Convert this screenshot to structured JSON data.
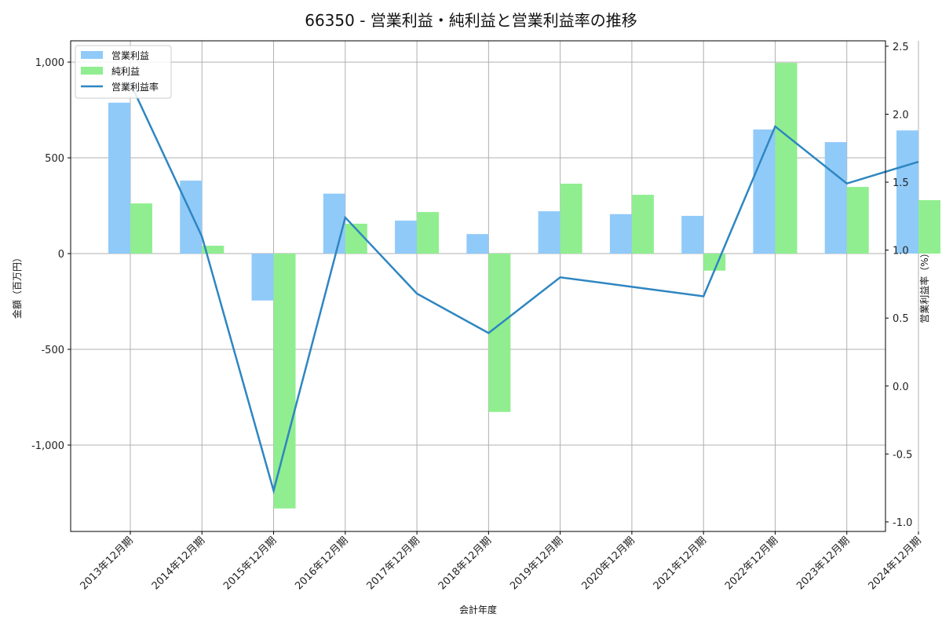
{
  "chart_data": {
    "type": "bar",
    "title": "66350 - 営業利益・純利益と営業利益率の推移",
    "xlabel": "会計年度",
    "ylabel": "金額（百万円）",
    "y2label": "営業利益率（%）",
    "categories": [
      "2013年12月期",
      "2014年12月期",
      "2015年12月期",
      "2016年12月期",
      "2017年12月期",
      "2018年12月期",
      "2019年12月期",
      "2020年12月期",
      "2021年12月期",
      "2022年12月期",
      "2023年12月期",
      "2024年12月期"
    ],
    "series": [
      {
        "name": "営業利益",
        "type": "bar",
        "axis": "left",
        "color": "#90CAF9",
        "values": [
          788,
          381,
          -245,
          313,
          172,
          102,
          221,
          206,
          197,
          648,
          582,
          643
        ]
      },
      {
        "name": "純利益",
        "type": "bar",
        "axis": "left",
        "color": "#90EE90",
        "values": [
          262,
          41,
          -1331,
          156,
          217,
          -827,
          365,
          307,
          -89,
          996,
          348,
          279
        ]
      },
      {
        "name": "営業利益率",
        "type": "line",
        "axis": "right",
        "color": "#2E86C1",
        "values": [
          2.23,
          1.1,
          -0.77,
          1.24,
          0.68,
          0.39,
          0.8,
          0.73,
          0.66,
          1.91,
          1.49,
          1.65
        ]
      }
    ],
    "ylim": [
      -1451,
      1111
    ],
    "y2lim": [
      -1.07,
      2.54
    ],
    "yticks": [
      1000,
      500,
      0,
      -500,
      -1000
    ],
    "ytick_labels": [
      "1,000",
      "500",
      "0",
      "-500",
      "-1,000"
    ],
    "y2ticks": [
      2.5,
      2.0,
      1.5,
      1.0,
      0.5,
      0.0,
      -0.5,
      -1.0
    ],
    "y2tick_labels": [
      "2.5",
      "2.0",
      "1.5",
      "1.0",
      "0.5",
      "0.0",
      "-0.5",
      "-1.0"
    ],
    "grid": true,
    "legend_position": "upper left"
  }
}
